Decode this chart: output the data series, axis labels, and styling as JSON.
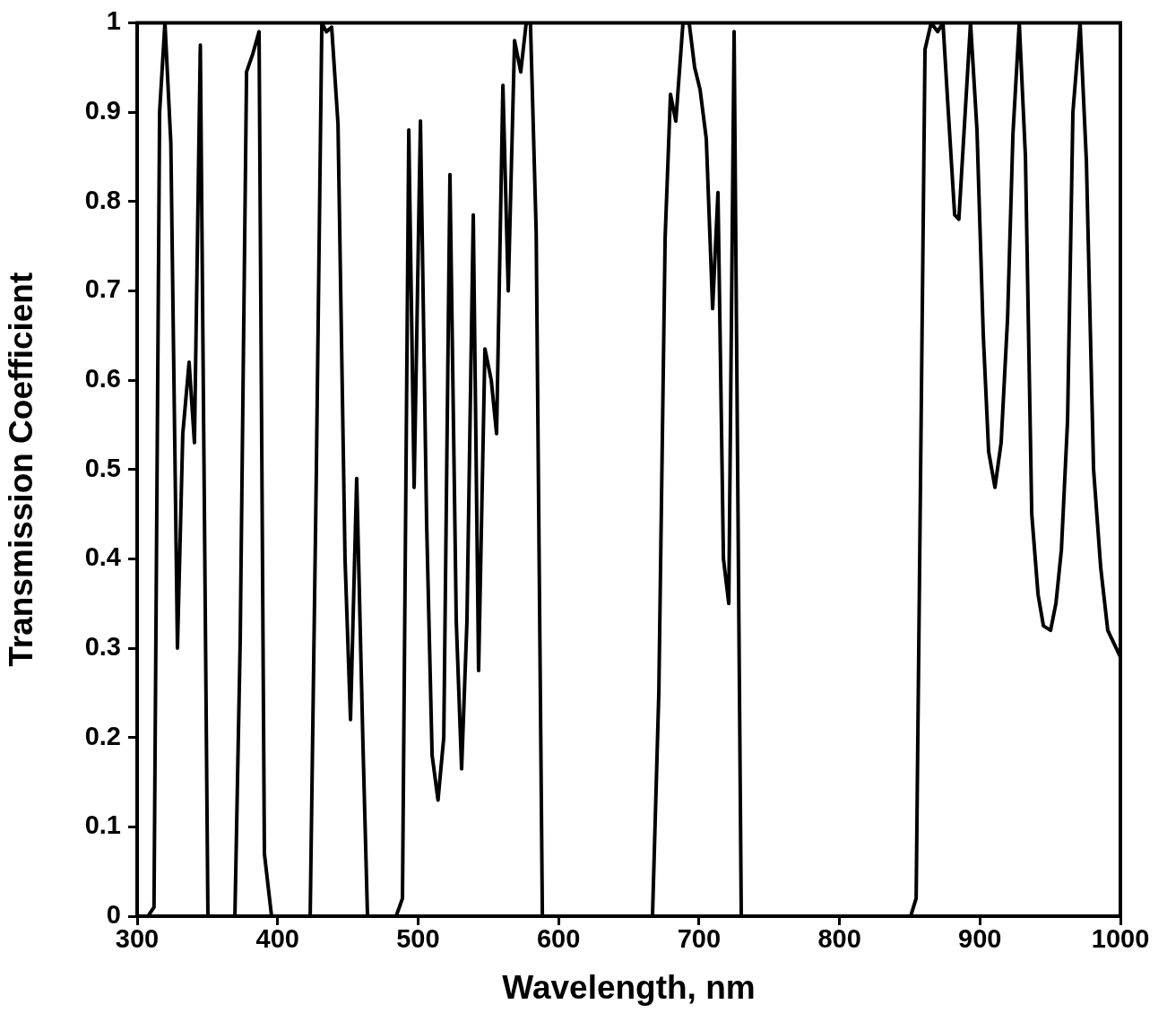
{
  "chart_data": {
    "type": "line",
    "xlabel": "Wavelength, nm",
    "ylabel": "Transmission Coefficient",
    "xlim": [
      300,
      1000
    ],
    "xticks": [
      300,
      400,
      500,
      600,
      700,
      800,
      900,
      1000
    ],
    "ylim": [
      0,
      1
    ],
    "yticks": [
      0,
      0.1,
      0.2,
      0.3,
      0.4,
      0.5,
      0.6,
      0.7,
      0.8,
      0.9,
      1
    ],
    "grid": false,
    "legend": false,
    "marker": "none",
    "line_style": "solid",
    "series": [
      {
        "color": "#000000",
        "x": [
          300,
          307.7,
          312,
          316,
          319.8,
          324,
          328.7,
          332.5,
          337,
          340.8,
          345,
          350.4,
          369.6,
          373.4,
          377.9,
          382.3,
          386.8,
          390.6,
          395.7,
          423.2,
          427.6,
          431.5,
          434.7,
          438.5,
          443,
          448,
          451.9,
          456.3,
          460.8,
          464,
          484.4,
          488.9,
          493.4,
          497.2,
          501.7,
          506.1,
          510,
          514.2,
          518.3,
          522.7,
          527.2,
          531,
          534.8,
          539.3,
          543.1,
          547.6,
          552.1,
          555.9,
          560.4,
          564.2,
          568.7,
          573.1,
          577,
          580,
          584.1,
          588.5,
          666.9,
          671.4,
          675.9,
          679.7,
          683.5,
          688.6,
          693,
          696.9,
          700.8,
          705.2,
          709.7,
          713.5,
          717.4,
          721.2,
          725,
          730.1,
          850.7,
          854.6,
          860.9,
          865.3,
          869.9,
          873.7,
          877.5,
          882,
          885,
          893.3,
          897.9,
          902.4,
          906.2,
          910.7,
          915.1,
          919.7,
          923.5,
          928,
          932.4,
          936.9,
          941.4,
          945.2,
          950.3,
          954.1,
          958,
          962.4,
          966.2,
          971.3,
          975.8,
          980.9,
          986,
          991,
          1000
        ],
        "values": [
          0,
          0,
          0.01,
          0.9,
          1,
          0.865,
          0.3,
          0.54,
          0.62,
          0.53,
          0.975,
          0,
          0,
          0.31,
          0.945,
          0.965,
          0.99,
          0.07,
          0,
          0,
          0.5,
          1,
          0.99,
          0.995,
          0.887,
          0.4,
          0.22,
          0.49,
          0.19,
          0,
          0,
          0.02,
          0.88,
          0.48,
          0.89,
          0.44,
          0.18,
          0.13,
          0.2,
          0.83,
          0.33,
          0.165,
          0.33,
          0.785,
          0.275,
          0.635,
          0.6,
          0.54,
          0.93,
          0.7,
          0.98,
          0.945,
          1,
          1,
          0.765,
          0,
          0,
          0.25,
          0.76,
          0.92,
          0.89,
          1,
          1,
          0.95,
          0.925,
          0.87,
          0.68,
          0.81,
          0.4,
          0.35,
          0.99,
          0,
          0,
          0.02,
          0.97,
          1,
          0.99,
          1,
          0.9,
          0.785,
          0.78,
          1,
          0.88,
          0.65,
          0.52,
          0.48,
          0.53,
          0.67,
          0.875,
          1,
          0.85,
          0.45,
          0.36,
          0.325,
          0.32,
          0.35,
          0.41,
          0.555,
          0.9,
          1,
          0.845,
          0.5,
          0.39,
          0.32,
          0.29
        ]
      }
    ]
  }
}
